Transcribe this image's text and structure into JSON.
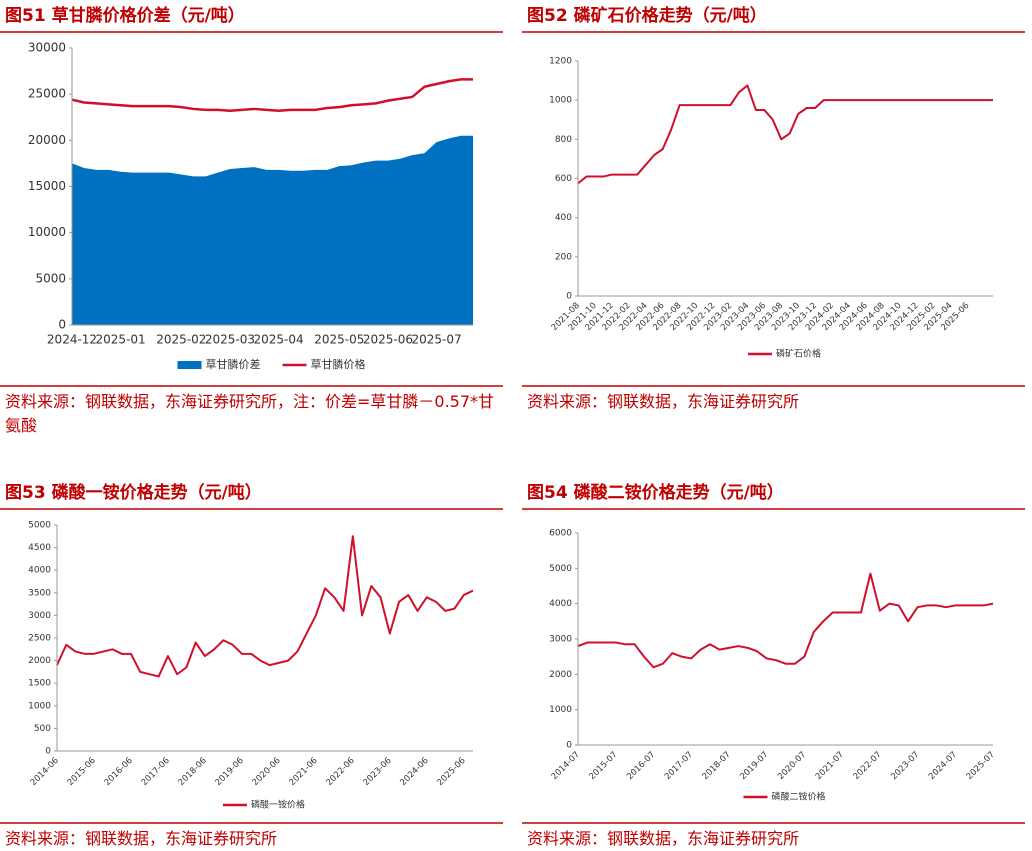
{
  "chart_data": [
    {
      "type": "line",
      "title": "图51 草甘膦价格价差（元/吨）",
      "source": "资料来源：钢联数据，东海证券研究所，注：价差=草甘膦－0.57*甘氨酸",
      "categories": [
        "2024-12",
        null,
        null,
        null,
        "2025-01",
        null,
        null,
        null,
        null,
        "2025-02",
        null,
        null,
        null,
        "2025-03",
        null,
        null,
        null,
        "2025-04",
        null,
        null,
        null,
        null,
        "2025-05",
        null,
        null,
        null,
        "2025-06",
        null,
        null,
        null,
        "2025-07",
        null,
        null,
        null
      ],
      "series": [
        {
          "name": "草甘膦价差",
          "type": "area",
          "color": "#0070c0",
          "values": [
            17500,
            17000,
            16800,
            16800,
            16600,
            16500,
            16500,
            16500,
            16500,
            16300,
            16100,
            16100,
            16500,
            16900,
            17000,
            17100,
            16800,
            16800,
            16700,
            16700,
            16800,
            16800,
            17200,
            17300,
            17600,
            17800,
            17800,
            18000,
            18400,
            18600,
            19800,
            20200,
            20500,
            20500
          ]
        },
        {
          "name": "草甘膦价格",
          "type": "line",
          "color": "#d0102b",
          "values": [
            24400,
            24100,
            24000,
            23900,
            23800,
            23700,
            23700,
            23700,
            23700,
            23600,
            23400,
            23300,
            23300,
            23200,
            23300,
            23400,
            23300,
            23200,
            23300,
            23300,
            23300,
            23500,
            23600,
            23800,
            23900,
            24000,
            24300,
            24500,
            24700,
            25800,
            26100,
            26400,
            26600,
            26600
          ]
        }
      ],
      "ylim": [
        0,
        30000
      ],
      "yticks": [
        0,
        5000,
        10000,
        15000,
        20000,
        25000,
        30000
      ]
    },
    {
      "type": "line",
      "title": "图52 磷矿石价格走势（元/吨）",
      "source": "资料来源：钢联数据，东海证券研究所",
      "categories": [
        "2021-08",
        null,
        "2021-10",
        null,
        "2021-12",
        null,
        "2022-02",
        null,
        "2022-04",
        null,
        "2022-06",
        null,
        "2022-08",
        null,
        "2022-10",
        null,
        "2022-12",
        null,
        "2023-02",
        null,
        "2023-04",
        null,
        "2023-06",
        null,
        "2023-08",
        null,
        "2023-10",
        null,
        "2023-12",
        null,
        "2024-02",
        null,
        "2024-04",
        null,
        "2024-06",
        null,
        "2024-08",
        null,
        "2024-10",
        null,
        "2024-12",
        null,
        "2025-02",
        null,
        "2025-04",
        null,
        "2025-06",
        null,
        null,
        null
      ],
      "series": [
        {
          "name": "磷矿石价格",
          "color": "#d0102b",
          "values": [
            575,
            610,
            610,
            610,
            620,
            620,
            620,
            620,
            670,
            720,
            750,
            850,
            975,
            975,
            975,
            975,
            975,
            975,
            975,
            1040,
            1075,
            950,
            950,
            900,
            800,
            830,
            930,
            960,
            960,
            1000,
            1000,
            1000,
            1000,
            1000,
            1000,
            1000,
            1000,
            1000,
            1000,
            1000,
            1000,
            1000,
            1000,
            1000,
            1000,
            1000,
            1000,
            1000,
            1000,
            1000
          ]
        }
      ],
      "ylim": [
        0,
        1200
      ],
      "yticks": [
        0,
        200,
        400,
        600,
        800,
        1000,
        1200
      ]
    },
    {
      "type": "line",
      "title": "图53 磷酸一铵价格走势（元/吨）",
      "source": "资料来源：钢联数据，东海证券研究所",
      "categories": [
        "2014-06",
        null,
        null,
        null,
        "2015-06",
        null,
        null,
        null,
        "2016-06",
        null,
        null,
        null,
        "2017-06",
        null,
        null,
        null,
        "2018-06",
        null,
        null,
        null,
        "2019-06",
        null,
        null,
        null,
        "2020-06",
        null,
        null,
        null,
        "2021-06",
        null,
        null,
        null,
        "2022-06",
        null,
        null,
        null,
        "2023-06",
        null,
        null,
        null,
        "2024-06",
        null,
        null,
        null,
        "2025-06",
        null
      ],
      "series": [
        {
          "name": "磷酸一铵价格",
          "color": "#d0102b",
          "values": [
            1900,
            2350,
            2200,
            2150,
            2150,
            2200,
            2250,
            2150,
            2150,
            1750,
            1700,
            1650,
            2100,
            1700,
            1850,
            2400,
            2100,
            2250,
            2450,
            2350,
            2150,
            2150,
            2000,
            1900,
            1950,
            2000,
            2200,
            2600,
            3000,
            3600,
            3400,
            3100,
            4750,
            3000,
            3650,
            3400,
            2600,
            3300,
            3450,
            3100,
            3400,
            3300,
            3100,
            3150,
            3450,
            3550
          ]
        }
      ],
      "ylim": [
        0,
        5000
      ],
      "yticks": [
        0,
        500,
        1000,
        1500,
        2000,
        2500,
        3000,
        3500,
        4000,
        4500,
        5000
      ]
    },
    {
      "type": "line",
      "title": "图54 磷酸二铵价格走势（元/吨）",
      "source": "资料来源：钢联数据，东海证券研究所",
      "categories": [
        "2014-07",
        null,
        null,
        null,
        "2015-07",
        null,
        null,
        null,
        "2016-07",
        null,
        null,
        null,
        "2017-07",
        null,
        null,
        null,
        "2018-07",
        null,
        null,
        null,
        "2019-07",
        null,
        null,
        null,
        "2020-07",
        null,
        null,
        null,
        "2021-07",
        null,
        null,
        null,
        "2022-07",
        null,
        null,
        null,
        "2023-07",
        null,
        null,
        null,
        "2024-07",
        null,
        null,
        null,
        "2025-07"
      ],
      "series": [
        {
          "name": "磷酸二铵价格",
          "color": "#d0102b",
          "values": [
            2800,
            2900,
            2900,
            2900,
            2900,
            2850,
            2850,
            2500,
            2200,
            2300,
            2600,
            2500,
            2450,
            2700,
            2850,
            2700,
            2750,
            2800,
            2750,
            2650,
            2450,
            2400,
            2300,
            2300,
            2500,
            3200,
            3500,
            3750,
            3750,
            3750,
            3750,
            4850,
            3800,
            4000,
            3950,
            3500,
            3900,
            3950,
            3950,
            3900,
            3950,
            3950,
            3950,
            3950,
            4000
          ]
        }
      ],
      "ylim": [
        0,
        6000
      ],
      "yticks": [
        0,
        1000,
        2000,
        3000,
        4000,
        5000,
        6000
      ]
    }
  ]
}
